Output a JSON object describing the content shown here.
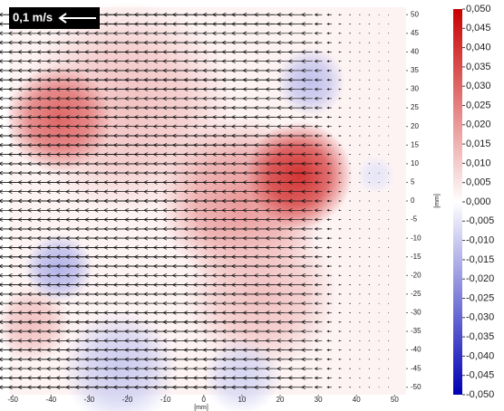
{
  "chart_data": {
    "type": "quiver",
    "scale_label": "0,1 m/s",
    "scale_value": 0.1,
    "x_label": "[mm]",
    "y_label": "[mm]",
    "xlim": [
      -51,
      53
    ],
    "ylim": [
      -52,
      52
    ],
    "xticks": [
      -50,
      -40,
      -30,
      -20,
      -10,
      0,
      10,
      20,
      30,
      40,
      50
    ],
    "yticks": [
      50,
      45,
      40,
      35,
      30,
      25,
      20,
      15,
      10,
      5,
      0,
      -5,
      -10,
      -15,
      -20,
      -25,
      -30,
      -35,
      -40,
      -45,
      -50
    ],
    "grid_x": [
      -49,
      -46.5,
      -44,
      -41.5,
      -39,
      -36.5,
      -34,
      -31.5,
      -29,
      -26.5,
      -24,
      -21.5,
      -19,
      -16.5,
      -14,
      -11.5,
      -9,
      -6.5,
      -4,
      -1.5,
      1,
      3.5,
      6,
      8.5,
      11,
      13.5,
      16,
      18.5,
      21,
      23.5,
      26,
      28.5,
      31,
      33.5,
      36,
      38.5,
      41,
      43.5,
      46,
      48.5
    ],
    "grid_y": [
      50,
      47.5,
      45,
      42.5,
      40,
      37.5,
      35,
      32.5,
      30,
      27.5,
      25,
      22.5,
      20,
      17.5,
      15,
      12.5,
      10,
      7.5,
      5,
      2.5,
      0,
      -2.5,
      -5,
      -7.5,
      -10,
      -12.5,
      -15,
      -17.5,
      -20,
      -22.5,
      -25,
      -27.5,
      -30,
      -32.5,
      -35,
      -37.5,
      -40,
      -42.5,
      -45,
      -47.5,
      -50
    ],
    "u": [
      -0.075,
      -0.075,
      -0.075,
      -0.075,
      -0.075,
      -0.075,
      -0.075,
      -0.075,
      -0.075,
      -0.075,
      -0.075,
      -0.075,
      -0.075,
      -0.075,
      -0.07,
      -0.07,
      -0.07,
      -0.07,
      -0.07,
      -0.07,
      -0.065,
      -0.065,
      -0.065,
      -0.065,
      -0.065,
      -0.065,
      -0.06,
      -0.055,
      -0.05,
      -0.045,
      -0.04,
      -0.03,
      -0.02,
      -0.012,
      -0.006,
      -0.003,
      -0.002,
      -0.002,
      -0.001,
      -0.001
    ],
    "regions": [
      {
        "x": -20,
        "y": 25,
        "value": 0.012,
        "r": 28
      },
      {
        "x": 10,
        "y": 0,
        "value": 0.02,
        "r": 22
      },
      {
        "x": 15,
        "y": -25,
        "value": 0.012,
        "r": 20
      },
      {
        "x": -45,
        "y": -33,
        "value": 0.012,
        "r": 10
      },
      {
        "x": -38,
        "y": 22,
        "value": 0.03,
        "r": 14
      },
      {
        "x": 25,
        "y": 7,
        "value": 0.04,
        "r": 14
      },
      {
        "x": 28,
        "y": 32,
        "value": -0.012,
        "r": 9
      },
      {
        "x": -38,
        "y": -18,
        "value": -0.015,
        "r": 9
      },
      {
        "x": -22,
        "y": -45,
        "value": -0.01,
        "r": 15
      },
      {
        "x": 10,
        "y": -47,
        "value": -0.008,
        "r": 10
      },
      {
        "x": 45,
        "y": 7,
        "value": -0.005,
        "r": 5
      }
    ],
    "colorbar": {
      "lim": [
        -0.05,
        0.05
      ],
      "colormap": [
        "#0000b4",
        "#ffffff",
        "#c80000"
      ],
      "ticks": [
        {
          "value": 0.05,
          "label": "0,050"
        },
        {
          "value": 0.045,
          "label": "0,045"
        },
        {
          "value": 0.04,
          "label": "0,040"
        },
        {
          "value": 0.035,
          "label": "0,035"
        },
        {
          "value": 0.03,
          "label": "0,030"
        },
        {
          "value": 0.025,
          "label": "0,025"
        },
        {
          "value": 0.02,
          "label": "0,020"
        },
        {
          "value": 0.015,
          "label": "0,015"
        },
        {
          "value": 0.01,
          "label": "0,010"
        },
        {
          "value": 0.005,
          "label": "0,005"
        },
        {
          "value": 0,
          "label": "0,000"
        },
        {
          "value": -0.005,
          "label": "-0,005"
        },
        {
          "value": -0.01,
          "label": "-0,010"
        },
        {
          "value": -0.015,
          "label": "-0,015"
        },
        {
          "value": -0.02,
          "label": "-0,020"
        },
        {
          "value": -0.025,
          "label": "-0,025"
        },
        {
          "value": -0.03,
          "label": "-0,030"
        },
        {
          "value": -0.035,
          "label": "-0,035"
        },
        {
          "value": -0.04,
          "label": "-0,040"
        },
        {
          "value": -0.045,
          "label": "-0,045"
        },
        {
          "value": -0.05,
          "label": "-0,050"
        }
      ]
    }
  }
}
